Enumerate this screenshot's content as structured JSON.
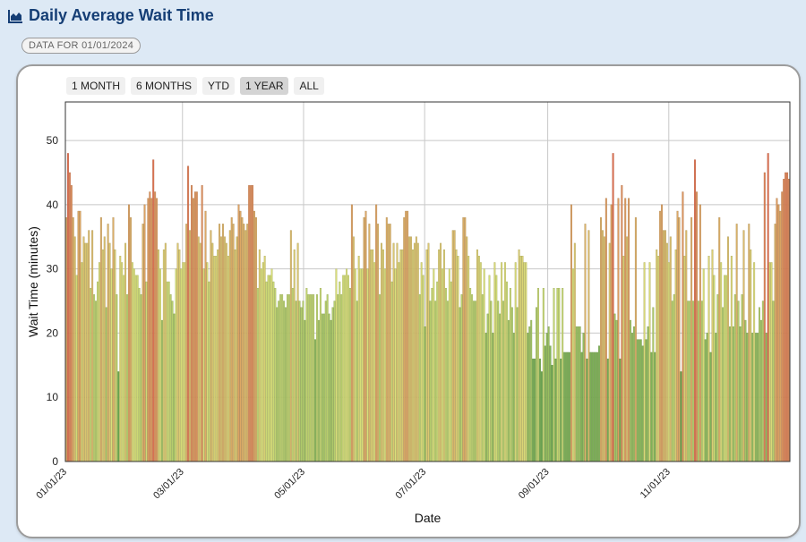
{
  "header": {
    "title": "Daily Average Wait Time",
    "icon": "area-chart-icon"
  },
  "badge": {
    "text": "DATA FOR 01/01/2024"
  },
  "range_buttons": [
    {
      "label": "1 MONTH",
      "active": false
    },
    {
      "label": "6 MONTHS",
      "active": false
    },
    {
      "label": "YTD",
      "active": false
    },
    {
      "label": "1 YEAR",
      "active": true
    },
    {
      "label": "ALL",
      "active": false
    }
  ],
  "colors": {
    "low": "#6aa84f",
    "mid": "#d9e07a",
    "high": "#e07050",
    "header": "#153e75"
  },
  "chart_data": {
    "type": "bar",
    "title": "",
    "xlabel": "Date",
    "ylabel": "Wait Time (minutes)",
    "ylim": [
      0,
      56
    ],
    "yticks": [
      0,
      10,
      20,
      30,
      40,
      50
    ],
    "x_start": "2023-01-01",
    "x_end": "2023-12-31",
    "xticks": [
      "01/01/23",
      "03/01/23",
      "05/01/23",
      "07/01/23",
      "09/01/23",
      "11/01/23"
    ],
    "grid": true,
    "legend": "none",
    "values": [
      38,
      48,
      45,
      43,
      38,
      35,
      29,
      39,
      39,
      31,
      35,
      34,
      34,
      36,
      27,
      36,
      26,
      25,
      28,
      31,
      38,
      33,
      35,
      24,
      37,
      34,
      30,
      38,
      33,
      26,
      14,
      32,
      31,
      29,
      34,
      26,
      40,
      38,
      31,
      30,
      29,
      29,
      27,
      26,
      37,
      40,
      28,
      41,
      42,
      41,
      47,
      42,
      41,
      33,
      30,
      22,
      33,
      34,
      28,
      28,
      26,
      25,
      23,
      30,
      34,
      33,
      30,
      31,
      31,
      37,
      46,
      36,
      43,
      41,
      42,
      42,
      35,
      34,
      43,
      30,
      39,
      31,
      28,
      36,
      34,
      32,
      32,
      33,
      37,
      35,
      37,
      35,
      34,
      32,
      36,
      38,
      37,
      33,
      35,
      40,
      39,
      38,
      37,
      36,
      37,
      43,
      43,
      43,
      39,
      38,
      27,
      33,
      30,
      31,
      32,
      28,
      29,
      29,
      30,
      28,
      27,
      24,
      25,
      26,
      26,
      25,
      24,
      26,
      26,
      36,
      27,
      33,
      25,
      34,
      25,
      24,
      25,
      22,
      27,
      26,
      26,
      26,
      26,
      19,
      26,
      22,
      27,
      23,
      23,
      25,
      26,
      23,
      22,
      24,
      25,
      30,
      26,
      28,
      26,
      29,
      29,
      30,
      29,
      27,
      40,
      35,
      30,
      25,
      32,
      30,
      30,
      38,
      39,
      30,
      37,
      33,
      33,
      31,
      40,
      37,
      26,
      34,
      33,
      30,
      38,
      37,
      37,
      28,
      34,
      30,
      34,
      31,
      33,
      33,
      38,
      39,
      39,
      35,
      35,
      33,
      34,
      35,
      34,
      26,
      31,
      29,
      21,
      33,
      34,
      25,
      27,
      30,
      25,
      28,
      33,
      34,
      30,
      33,
      27,
      25,
      30,
      28,
      36,
      36,
      33,
      32,
      24,
      26,
      38,
      38,
      35,
      32,
      27,
      26,
      25,
      25,
      33,
      32,
      31,
      26,
      30,
      20,
      23,
      29,
      25,
      20,
      31,
      29,
      25,
      23,
      31,
      25,
      31,
      28,
      22,
      27,
      24,
      20,
      31,
      24,
      33,
      32,
      32,
      31,
      31,
      20,
      21,
      22,
      16,
      16,
      24,
      27,
      16,
      14,
      27,
      18,
      20,
      21,
      18,
      15,
      27,
      16,
      27,
      27,
      16,
      27,
      17,
      17,
      17,
      17,
      40,
      30,
      34,
      21,
      21,
      21,
      17,
      20,
      37,
      16,
      36,
      17,
      17,
      17,
      17,
      17,
      18,
      38,
      36,
      35,
      41,
      16,
      34,
      40,
      48,
      23,
      22,
      41,
      16,
      43,
      32,
      41,
      35,
      41,
      22,
      20,
      21,
      38,
      19,
      19,
      19,
      18,
      31,
      19,
      21,
      31,
      17,
      24,
      17,
      33,
      32,
      39,
      40,
      36,
      36,
      34,
      31,
      35,
      25,
      26,
      33,
      39,
      38,
      14,
      42,
      32,
      36,
      25,
      25,
      38,
      25,
      47,
      42,
      25,
      40,
      25,
      30,
      19,
      20,
      32,
      17,
      33,
      29,
      20,
      26,
      38,
      31,
      24,
      29,
      29,
      35,
      21,
      32,
      21,
      26,
      37,
      25,
      21,
      26,
      36,
      22,
      20,
      37,
      33,
      20,
      31,
      20,
      20,
      24,
      22,
      25,
      45,
      20,
      48,
      31,
      31,
      25,
      37,
      41,
      40,
      39,
      42,
      44,
      45,
      45,
      44
    ]
  }
}
